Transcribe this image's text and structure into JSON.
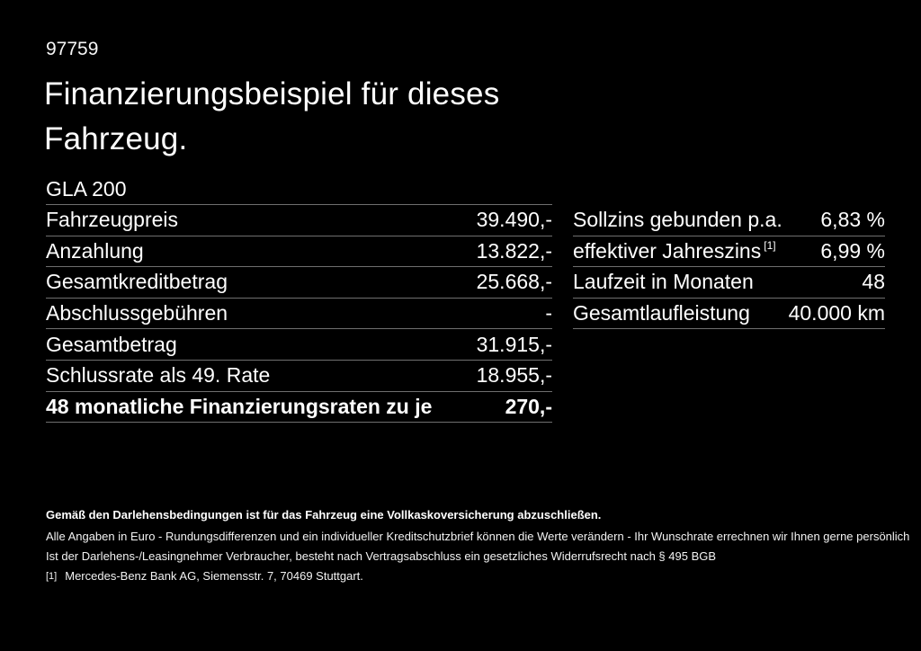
{
  "page": {
    "number": "97759",
    "title_line1": "Finanzierungsbeispiel für dieses",
    "title_line2": "Fahrzeug.",
    "model": "GLA 200"
  },
  "left_table": {
    "rows": [
      {
        "label": "Fahrzeugpreis",
        "value": "39.490,-"
      },
      {
        "label": "Anzahlung",
        "value": "13.822,-"
      },
      {
        "label": "Gesamtkreditbetrag",
        "value": "25.668,-"
      },
      {
        "label": "Abschlussgebühren",
        "value": "-"
      },
      {
        "label": "Gesamtbetrag",
        "value": "31.915,-"
      },
      {
        "label": "Schlussrate als 49. Rate",
        "value": "18.955,-"
      },
      {
        "label": "48 monatliche Finanzierungsraten zu je",
        "value": "270,-"
      }
    ]
  },
  "right_table": {
    "rows": [
      {
        "label": "Sollzins gebunden p.a.",
        "sup": "",
        "value": "6,83 %"
      },
      {
        "label": "effektiver Jahreszins",
        "sup": "[1]",
        "value": "6,99 %"
      },
      {
        "label": "Laufzeit in Monaten",
        "sup": "",
        "value": "48"
      },
      {
        "label": "Gesamtlaufleistung",
        "sup": "",
        "value": "40.000 km"
      }
    ]
  },
  "footer": {
    "line1": "Gemäß den Darlehensbedingungen ist für das Fahrzeug eine Vollkaskoversicherung abzuschließen.",
    "line2": "Alle Angaben in Euro - Rundungsdifferenzen und ein individueller Kreditschutzbrief können die Werte verändern - Ihr Wunschrate errechnen wir Ihnen gerne persönlich",
    "line3": "Ist der Darlehens-/Leasingnehmer Verbraucher, besteht nach Vertragsabschluss ein gesetzliches Widerrufsrecht nach § 495 BGB",
    "footnote_marker": "[1]",
    "footnote_text": "Mercedes-Benz Bank AG, Siemensstr. 7, 70469 Stuttgart."
  },
  "colors": {
    "background": "#000000",
    "text": "#ffffff",
    "divider": "#6f6f6f"
  }
}
